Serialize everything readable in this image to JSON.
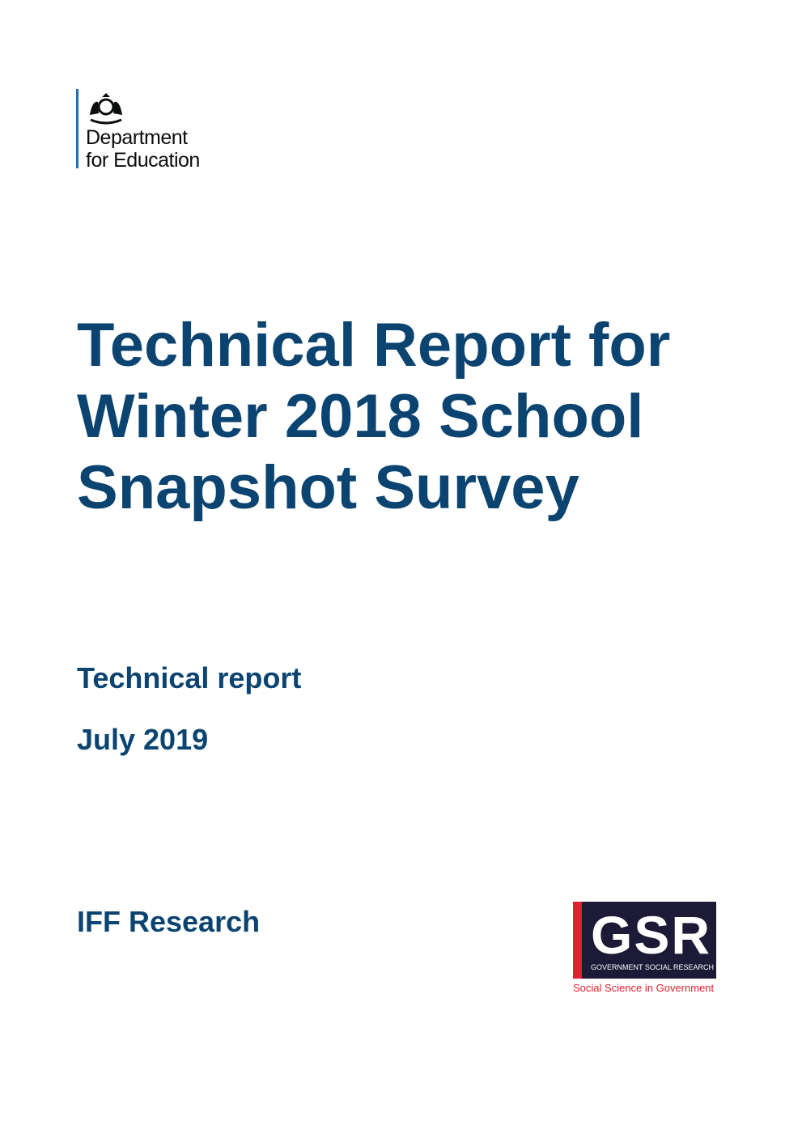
{
  "logo_dfe": {
    "name_line1": "Department",
    "name_line2": "for Education",
    "icon": "royal-coat-of-arms-icon"
  },
  "title": "Technical Report for Winter 2018 School Snapshot Survey",
  "subtitle": "Technical report",
  "date": "July 2019",
  "author": "IFF Research",
  "logo_gsr": {
    "letters": "GSR",
    "full_name": "GOVERNMENT SOCIAL RESEARCH",
    "tagline": "Social Science in Government"
  },
  "colors": {
    "title": "#0b4470",
    "gsr_navy": "#1c1a36",
    "gsr_red": "#e4202d"
  }
}
